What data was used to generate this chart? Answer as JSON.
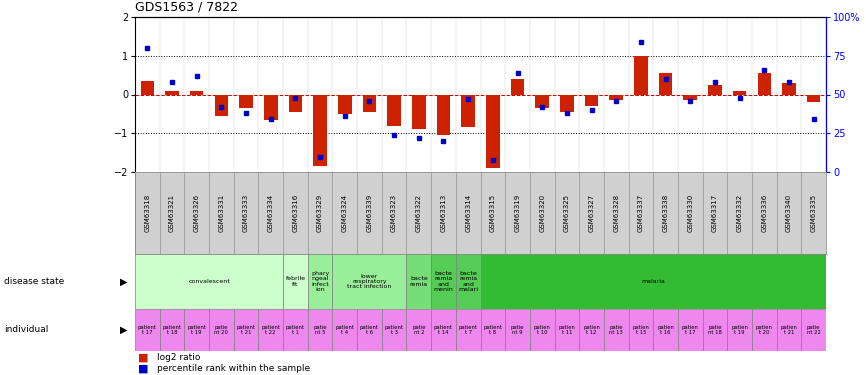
{
  "title": "GDS1563 / 7822",
  "samples": [
    "GSM63318",
    "GSM63321",
    "GSM63326",
    "GSM63331",
    "GSM63333",
    "GSM63334",
    "GSM63316",
    "GSM63329",
    "GSM63324",
    "GSM63339",
    "GSM63323",
    "GSM63322",
    "GSM63313",
    "GSM63314",
    "GSM63315",
    "GSM63319",
    "GSM63320",
    "GSM63325",
    "GSM63327",
    "GSM63328",
    "GSM63337",
    "GSM63338",
    "GSM63330",
    "GSM63317",
    "GSM63332",
    "GSM63336",
    "GSM63340",
    "GSM63335"
  ],
  "log2_ratio": [
    0.35,
    0.1,
    0.1,
    -0.55,
    -0.35,
    -0.65,
    -0.45,
    -1.85,
    -0.5,
    -0.45,
    -0.8,
    -0.9,
    -1.05,
    -0.85,
    -1.9,
    0.4,
    -0.35,
    -0.45,
    -0.3,
    -0.15,
    1.0,
    0.55,
    -0.15,
    0.25,
    0.1,
    0.55,
    0.3,
    -0.2
  ],
  "percentile": [
    80,
    58,
    62,
    42,
    38,
    34,
    48,
    10,
    36,
    46,
    24,
    22,
    20,
    47,
    8,
    64,
    42,
    38,
    40,
    46,
    84,
    60,
    46,
    58,
    48,
    66,
    58,
    34
  ],
  "disease_states": [
    {
      "label": "convalescent",
      "start": 0,
      "end": 6,
      "color": "#ccffcc"
    },
    {
      "label": "febrile\nfit",
      "start": 6,
      "end": 7,
      "color": "#ccffcc"
    },
    {
      "label": "phary\nngeal\ninfect\nion",
      "start": 7,
      "end": 8,
      "color": "#99ee99"
    },
    {
      "label": "lower\nrespiratory\ntract infection",
      "start": 8,
      "end": 11,
      "color": "#99ee99"
    },
    {
      "label": "bacte\nremia",
      "start": 11,
      "end": 12,
      "color": "#77dd77"
    },
    {
      "label": "bacte\nremia\nand\nmenin",
      "start": 12,
      "end": 13,
      "color": "#55cc55"
    },
    {
      "label": "bacte\nremia\nand\nmalari",
      "start": 13,
      "end": 14,
      "color": "#55cc55"
    },
    {
      "label": "malaria",
      "start": 14,
      "end": 28,
      "color": "#33bb33"
    }
  ],
  "individuals": [
    {
      "label": "patient\nt 17",
      "start": 0,
      "end": 1
    },
    {
      "label": "patient\nt 18",
      "start": 1,
      "end": 2
    },
    {
      "label": "patient\nt 19",
      "start": 2,
      "end": 3
    },
    {
      "label": "patie\nnt 20",
      "start": 3,
      "end": 4
    },
    {
      "label": "patient\nt 21",
      "start": 4,
      "end": 5
    },
    {
      "label": "patient\nt 22",
      "start": 5,
      "end": 6
    },
    {
      "label": "patient\nt 1",
      "start": 6,
      "end": 7
    },
    {
      "label": "patie\nnt 5",
      "start": 7,
      "end": 8
    },
    {
      "label": "patient\nt 4",
      "start": 8,
      "end": 9
    },
    {
      "label": "patient\nt 6",
      "start": 9,
      "end": 10
    },
    {
      "label": "patient\nt 3",
      "start": 10,
      "end": 11
    },
    {
      "label": "patie\nnt 2",
      "start": 11,
      "end": 12
    },
    {
      "label": "patient\nt 14",
      "start": 12,
      "end": 13
    },
    {
      "label": "patient\nt 7",
      "start": 13,
      "end": 14
    },
    {
      "label": "patient\nt 8",
      "start": 14,
      "end": 15
    },
    {
      "label": "patie\nnt 9",
      "start": 15,
      "end": 16
    },
    {
      "label": "patien\nt 10",
      "start": 16,
      "end": 17
    },
    {
      "label": "patien\nt 11",
      "start": 17,
      "end": 18
    },
    {
      "label": "patien\nt 12",
      "start": 18,
      "end": 19
    },
    {
      "label": "patie\nnt 13",
      "start": 19,
      "end": 20
    },
    {
      "label": "patien\nt 15",
      "start": 20,
      "end": 21
    },
    {
      "label": "patien\nt 16",
      "start": 21,
      "end": 22
    },
    {
      "label": "patien\nt 17",
      "start": 22,
      "end": 23
    },
    {
      "label": "patie\nnt 18",
      "start": 23,
      "end": 24
    },
    {
      "label": "patien\nt 19",
      "start": 24,
      "end": 25
    },
    {
      "label": "patien\nt 20",
      "start": 25,
      "end": 26
    },
    {
      "label": "patien\nt 21",
      "start": 26,
      "end": 27
    },
    {
      "label": "patie\nnt 22",
      "start": 27,
      "end": 28
    }
  ],
  "ylim": [
    -2,
    2
  ],
  "bar_color": "#cc2200",
  "dot_color": "#0000cc",
  "background_color": "#ffffff",
  "ind_color": "#ee88ee",
  "gsm_bg_color": "#d0d0d0"
}
